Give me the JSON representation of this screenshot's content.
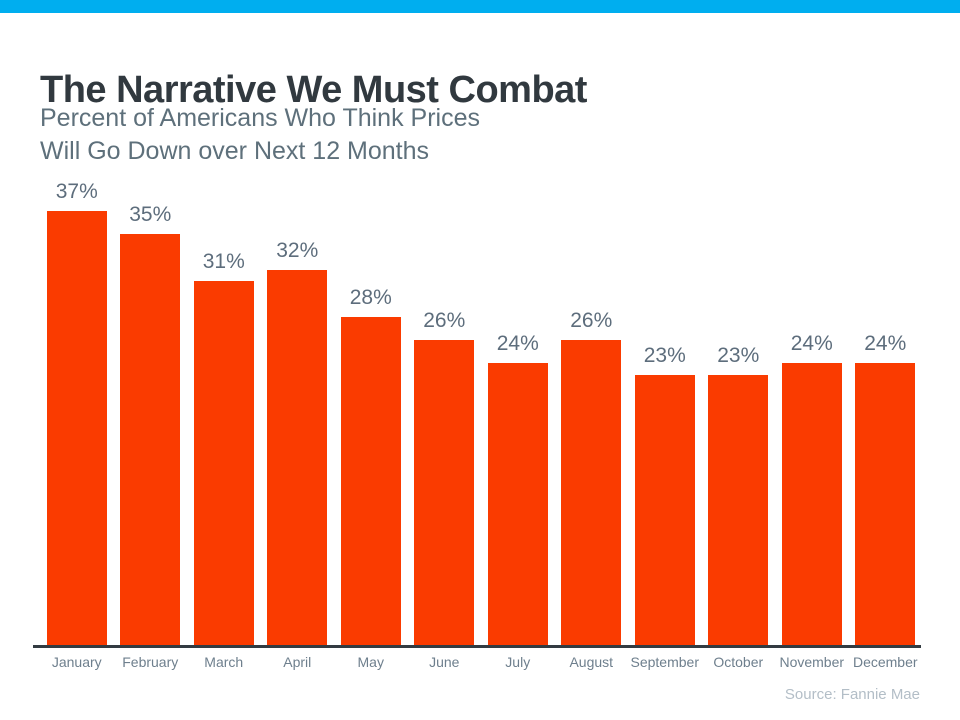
{
  "page": {
    "title": "The Narrative We Must Combat",
    "subtitle_line1": "Percent of Americans Who Think Prices",
    "subtitle_line2": "Will Go Down over Next 12 Months",
    "source": "Source: Fannie Mae"
  },
  "colors": {
    "accent_strip": "#00AEEF",
    "bar": "#FA3B00",
    "title": "#31393F",
    "subtitle": "#5E707B",
    "value_label": "#5D6D7C",
    "month_label": "#6E7F8D",
    "axis": "#333B41",
    "source": "#B3BEC7"
  },
  "chart_data": {
    "type": "bar",
    "title": "The Narrative We Must Combat",
    "subtitle": "Percent of Americans Who Think Prices Will Go Down over Next 12 Months",
    "categories": [
      "January",
      "February",
      "March",
      "April",
      "May",
      "June",
      "July",
      "August",
      "September",
      "October",
      "November",
      "December"
    ],
    "values": [
      37,
      35,
      31,
      32,
      28,
      26,
      24,
      26,
      23,
      23,
      24,
      24
    ],
    "value_labels": [
      "37%",
      "35%",
      "31%",
      "32%",
      "28%",
      "26%",
      "24%",
      "26%",
      "23%",
      "23%",
      "24%",
      "24%"
    ],
    "xlabel": "",
    "ylabel": "",
    "ylim": [
      0,
      40
    ],
    "grid": false,
    "legend": false,
    "bar_color": "#FA3B00",
    "source": "Source: Fannie Mae"
  }
}
